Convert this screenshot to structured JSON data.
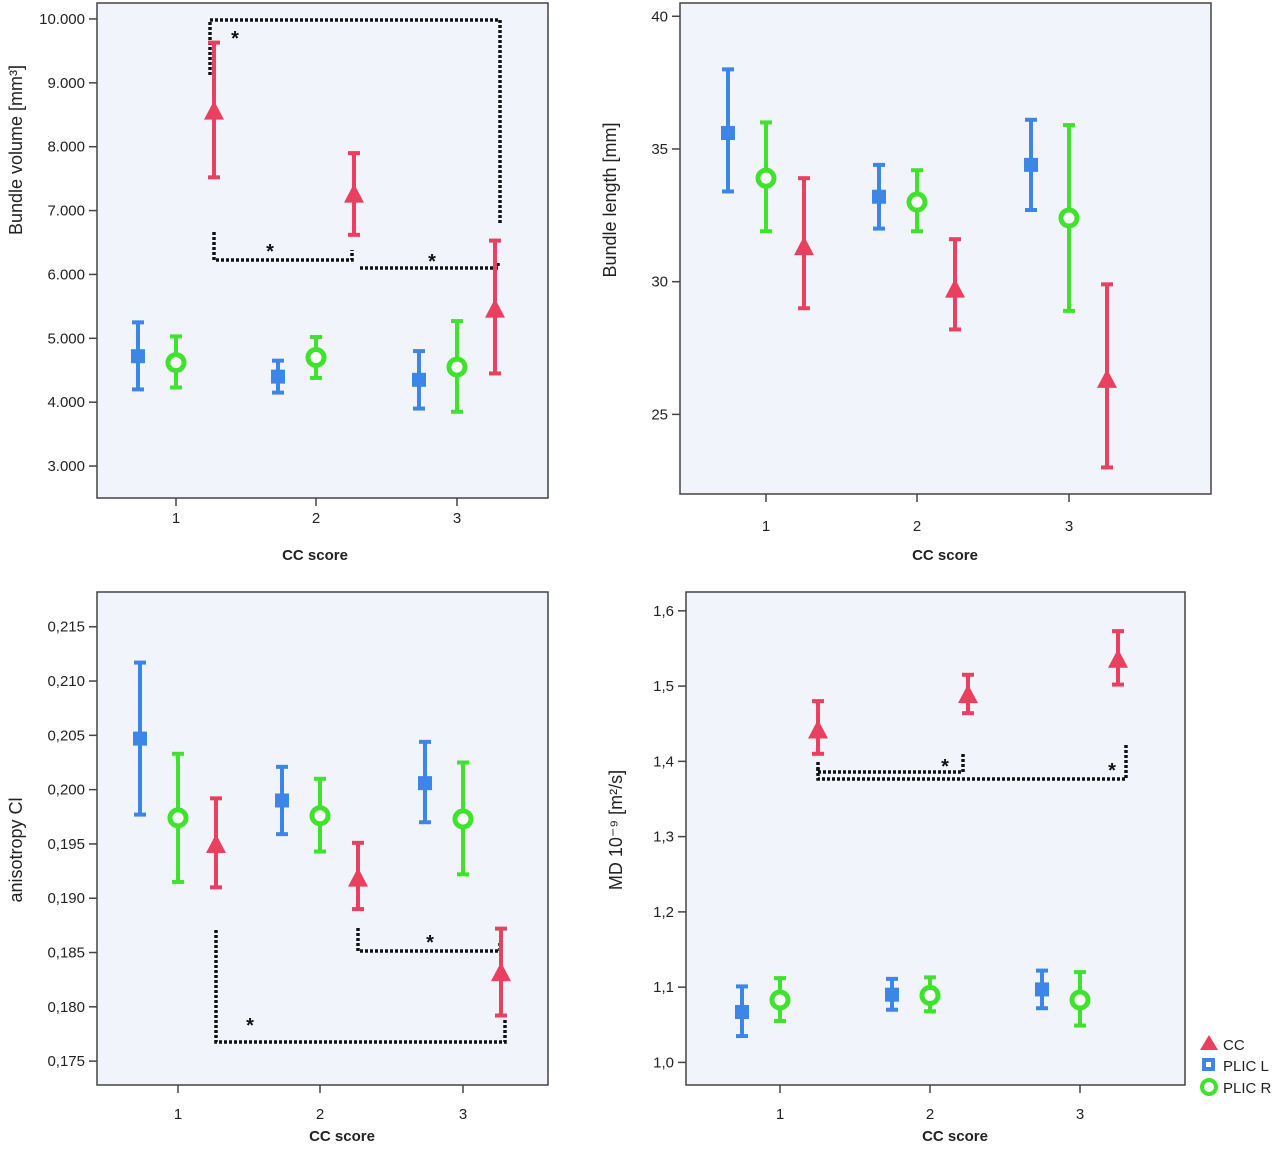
{
  "legend": [
    {
      "key": "CC",
      "label": "CC",
      "color": "#e8405e",
      "marker": "triangle"
    },
    {
      "key": "PLICL",
      "label": "PLIC L",
      "color": "#3b86e6",
      "marker": "square"
    },
    {
      "key": "PLICR",
      "label": "PLIC R",
      "color": "#3fe22c",
      "marker": "circle"
    }
  ],
  "chart_data": [
    {
      "type": "errorbar",
      "ylabel": "Bundle volume [mm³]",
      "xlabel": "CC score",
      "categories": [
        "1",
        "2",
        "3"
      ],
      "ylim": [
        2500,
        10250
      ],
      "yticks": [
        3000,
        4000,
        5000,
        6000,
        7000,
        8000,
        9000,
        10000
      ],
      "ytick_labels": [
        "3.000",
        "4.000",
        "5.000",
        "6.000",
        "7.000",
        "8.000",
        "9.000",
        "10.000"
      ],
      "series": [
        {
          "name": "PLIC L",
          "mean": [
            4720,
            4400,
            4350
          ],
          "lower": [
            4200,
            4150,
            3900
          ],
          "upper": [
            5250,
            4650,
            4800
          ]
        },
        {
          "name": "PLIC R",
          "mean": [
            4620,
            4700,
            4550
          ],
          "lower": [
            4230,
            4380,
            3850
          ],
          "upper": [
            5030,
            5020,
            5270
          ]
        },
        {
          "name": "CC",
          "mean": [
            8550,
            7250,
            5450
          ],
          "lower": [
            7520,
            6620,
            4450
          ],
          "upper": [
            9630,
            7900,
            6530
          ]
        }
      ],
      "significance": [
        {
          "label": "*",
          "between": [
            "1",
            "3"
          ],
          "level": 10100
        },
        {
          "label": "*",
          "between": [
            "1",
            "2"
          ],
          "level": 6350
        },
        {
          "label": "*",
          "between": [
            "2",
            "3"
          ],
          "level": 6200
        }
      ]
    },
    {
      "type": "errorbar",
      "ylabel": "Bundle length [mm]",
      "xlabel": "CC score",
      "categories": [
        "1",
        "2",
        "3"
      ],
      "ylim": [
        22,
        40.5
      ],
      "yticks": [
        25,
        30,
        35,
        40
      ],
      "ytick_labels": [
        "25",
        "30",
        "35",
        "40"
      ],
      "series": [
        {
          "name": "PLIC L",
          "mean": [
            35.6,
            33.2,
            34.4
          ],
          "lower": [
            33.4,
            32.0,
            32.7
          ],
          "upper": [
            38.0,
            34.4,
            36.1
          ]
        },
        {
          "name": "PLIC R",
          "mean": [
            33.9,
            33.0,
            32.4
          ],
          "lower": [
            31.9,
            31.9,
            28.9
          ],
          "upper": [
            36.0,
            34.2,
            35.9
          ]
        },
        {
          "name": "CC",
          "mean": [
            31.3,
            29.7,
            26.3
          ],
          "lower": [
            29.0,
            28.2,
            23.0
          ],
          "upper": [
            33.9,
            31.6,
            29.9
          ]
        }
      ],
      "significance": []
    },
    {
      "type": "errorbar",
      "ylabel": "anisotropy Cl",
      "xlabel": "CC score",
      "categories": [
        "1",
        "2",
        "3"
      ],
      "ylim": [
        0.1728,
        0.2182
      ],
      "yticks": [
        0.175,
        0.18,
        0.185,
        0.19,
        0.195,
        0.2,
        0.205,
        0.21,
        0.215
      ],
      "ytick_labels": [
        "0,175",
        "0,180",
        "0,185",
        "0,190",
        "0,195",
        "0,200",
        "0,205",
        "0,210",
        "0,215"
      ],
      "series": [
        {
          "name": "PLIC L",
          "mean": [
            0.2047,
            0.199,
            0.2006
          ],
          "lower": [
            0.1977,
            0.1959,
            0.197
          ],
          "upper": [
            0.2117,
            0.2021,
            0.2044
          ]
        },
        {
          "name": "PLIC R",
          "mean": [
            0.1974,
            0.1976,
            0.1973
          ],
          "lower": [
            0.1915,
            0.1943,
            0.1922
          ],
          "upper": [
            0.2033,
            0.201,
            0.2025
          ]
        },
        {
          "name": "CC",
          "mean": [
            0.1949,
            0.1918,
            0.1831
          ],
          "lower": [
            0.191,
            0.189,
            0.1792
          ],
          "upper": [
            0.1992,
            0.1951,
            0.1872
          ]
        }
      ],
      "significance": [
        {
          "label": "*",
          "between": [
            "1",
            "3"
          ],
          "level": 0.177
        },
        {
          "label": "*",
          "between": [
            "2",
            "3"
          ],
          "level": 0.185
        }
      ]
    },
    {
      "type": "errorbar",
      "ylabel": "MD 10⁻⁹ [m²/s]",
      "xlabel": "CC score",
      "categories": [
        "1",
        "2",
        "3"
      ],
      "ylim": [
        0.97,
        1.625
      ],
      "yticks": [
        1.0,
        1.1,
        1.2,
        1.3,
        1.4,
        1.5,
        1.6
      ],
      "ytick_labels": [
        "1,0",
        "1,1",
        "1,2",
        "1,3",
        "1,4",
        "1,5",
        "1,6"
      ],
      "series": [
        {
          "name": "PLIC L",
          "mean": [
            1.067,
            1.09,
            1.097
          ],
          "lower": [
            1.035,
            1.07,
            1.072
          ],
          "upper": [
            1.101,
            1.111,
            1.122
          ]
        },
        {
          "name": "PLIC R",
          "mean": [
            1.083,
            1.089,
            1.083
          ],
          "lower": [
            1.055,
            1.068,
            1.049
          ],
          "upper": [
            1.112,
            1.113,
            1.12
          ]
        },
        {
          "name": "CC",
          "mean": [
            1.441,
            1.488,
            1.535
          ],
          "lower": [
            1.41,
            1.464,
            1.502
          ],
          "upper": [
            1.48,
            1.515,
            1.573
          ]
        }
      ],
      "significance": [
        {
          "label": "*",
          "between": [
            "1",
            "2"
          ],
          "level": 1.39
        },
        {
          "label": "*",
          "between": [
            "1",
            "3"
          ],
          "level": 1.382
        }
      ]
    }
  ]
}
